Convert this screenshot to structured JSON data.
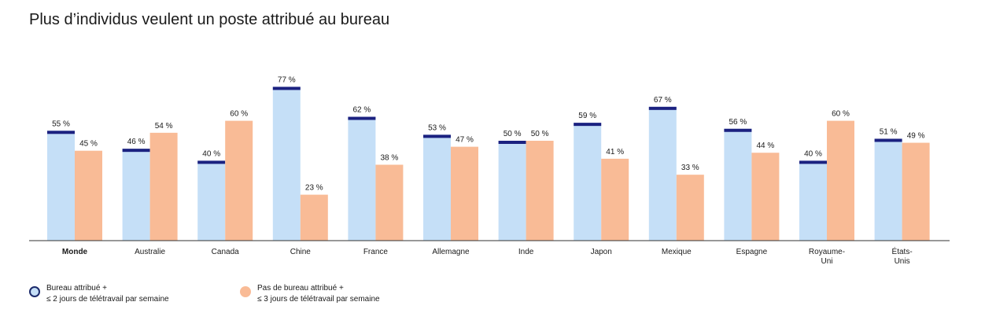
{
  "colors": {
    "series_a_fill": "#c5dff7",
    "series_a_cap": "#1b2180",
    "series_b_fill": "#f9bb96",
    "axis": "#333333",
    "text": "#1a1a1a"
  },
  "chart_data": {
    "type": "bar",
    "title": "Plus d’individus veulent un poste attribué au bureau",
    "categories": [
      [
        "Monde"
      ],
      [
        "Australie"
      ],
      [
        "Canada"
      ],
      [
        "Chine"
      ],
      [
        "France"
      ],
      [
        "Allemagne"
      ],
      [
        "Inde"
      ],
      [
        "Japon"
      ],
      [
        "Mexique"
      ],
      [
        "Espagne"
      ],
      [
        "Royaume-",
        "Uni"
      ],
      [
        "États-",
        "Unis"
      ]
    ],
    "series": [
      {
        "name": "Bureau attribué + ≤ 2 jours de télétravail par semaine",
        "values": [
          55,
          46,
          40,
          77,
          62,
          53,
          50,
          59,
          67,
          56,
          40,
          51
        ],
        "labels": [
          "55 %",
          "46 %",
          "40 %",
          "77 %",
          "62 %",
          "53 %",
          "50 %",
          "59 %",
          "67 %",
          "56 %",
          "40 %",
          "51 %"
        ]
      },
      {
        "name": "Pas de bureau attribué + ≤ 3 jours de télétravail par semaine",
        "values": [
          45,
          54,
          60,
          23,
          38,
          47,
          50,
          41,
          33,
          44,
          60,
          49
        ],
        "labels": [
          "45 %",
          "54 %",
          "60 %",
          "23 %",
          "38 %",
          "47 %",
          "50 %",
          "41 %",
          "33 %",
          "44 %",
          "60 %",
          "49 %"
        ]
      }
    ],
    "ylim": [
      0,
      100
    ],
    "grid": false,
    "legend_position": "bottom-left",
    "bold_category": "Monde"
  },
  "legend": {
    "a": {
      "line1": "Bureau attribué +",
      "line2": "≤ 2 jours de télétravail par semaine"
    },
    "b": {
      "line1": "Pas de bureau attribué +",
      "line2": "≤ 3 jours de télétravail par semaine"
    }
  }
}
